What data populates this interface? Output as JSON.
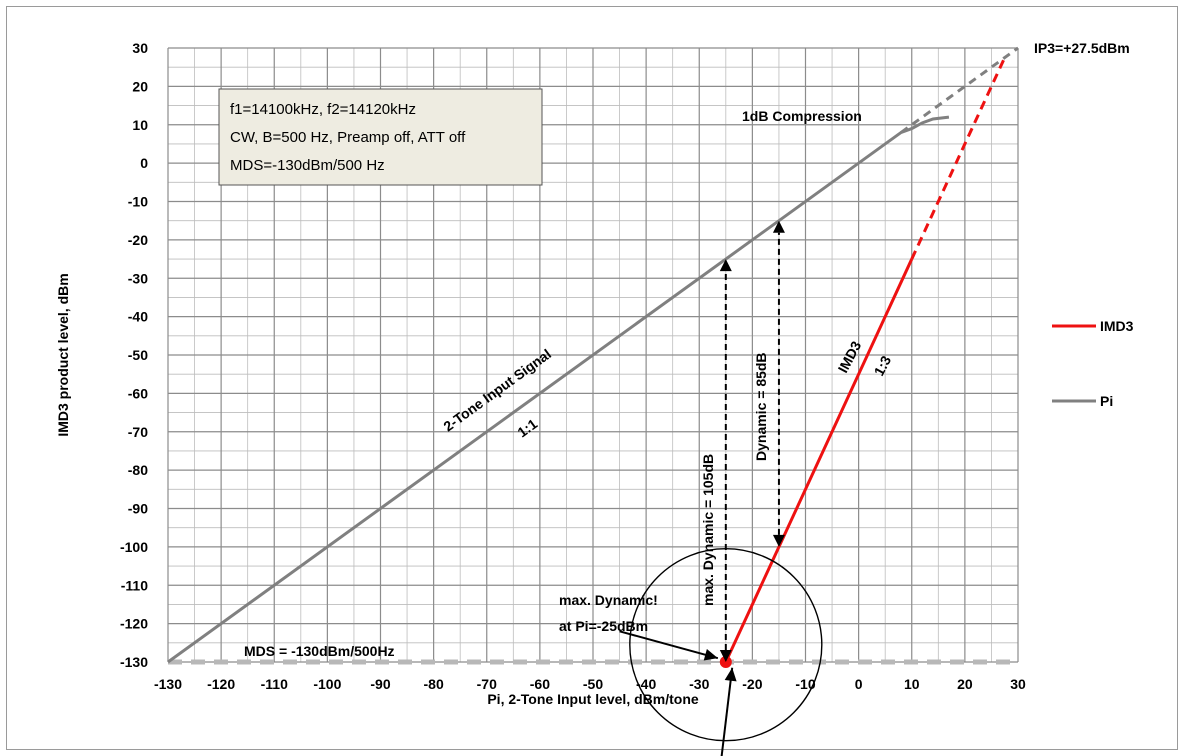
{
  "chart_data": {
    "type": "line",
    "xlabel": "Pi,  2-Tone Input level, dBm/tone",
    "ylabel": "IMD3 product level, dBm",
    "xlim": [
      -130,
      30
    ],
    "ylim": [
      -130,
      30
    ],
    "x_ticks": [
      -130,
      -120,
      -110,
      -100,
      -90,
      -80,
      -70,
      -60,
      -50,
      -40,
      -30,
      -20,
      -10,
      0,
      10,
      20,
      30
    ],
    "y_ticks": [
      30,
      20,
      10,
      0,
      -10,
      -20,
      -30,
      -40,
      -50,
      -60,
      -70,
      -80,
      -90,
      -100,
      -110,
      -120,
      -130
    ],
    "grid": true,
    "legend_position": "right",
    "series": [
      {
        "name": "IMD3",
        "color": "#ee1111",
        "points": [
          [
            -25,
            -130
          ],
          [
            10,
            -25
          ]
        ],
        "extrapolated": [
          [
            10,
            -25
          ],
          [
            27.5,
            27.5
          ]
        ]
      },
      {
        "name": "Pi",
        "color": "#808080",
        "points": [
          [
            -130,
            -130
          ],
          [
            8,
            8
          ],
          [
            10,
            9
          ],
          [
            12,
            10.5
          ],
          [
            14,
            11.5
          ],
          [
            17,
            12
          ]
        ],
        "extrapolated": [
          [
            8,
            8
          ],
          [
            30,
            30
          ]
        ]
      }
    ],
    "mds_line": {
      "y": -130,
      "label": "MDS = -130dBm/500Hz"
    },
    "info_box": {
      "lines": [
        "f1=14100kHz, f2=14120kHz",
        "CW, B=500 Hz, Preamp off, ATT off",
        "MDS=-130dBm/500 Hz"
      ]
    },
    "annotations": {
      "ip3": "IP3=+27.5dBm",
      "compression": "1dB Compression",
      "input_signal": "2-Tone Input Signal",
      "ratio_1_1": "1:1",
      "imd3": "IMD3",
      "ratio_1_3": "1:3",
      "dynamic_max": "max. Dynamic = 105dB",
      "dynamic_85": "Dynamic = 85dB",
      "max_dynamic_line1": "max. Dynamic!",
      "max_dynamic_line2": "at Pi=-25dBm"
    },
    "dynamic_arrows": [
      {
        "x": -25,
        "y_from": -130,
        "y_to": -25
      },
      {
        "x": -15,
        "y_from": -100,
        "y_to": -15
      }
    ],
    "marker_point": [
      -25,
      -130
    ]
  }
}
